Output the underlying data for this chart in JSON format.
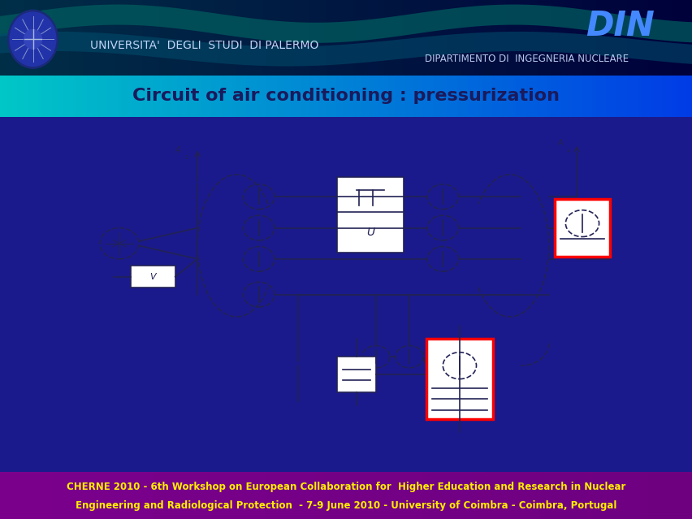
{
  "title_text": "Circuit of air conditioning : pressurization",
  "header_text1": "UNIVERSITA'  DEGLI  STUDI  DI PALERMO",
  "header_text2": "DIPARTIMENTO DI  INGEGNERIA NUCLEARE",
  "header_din": "DIN",
  "footer_line1": "CHERNE 2010 - 6th Workshop on European Collaboration for  Higher Education and Research in Nuclear",
  "footer_line2": "Engineering and Radiological Protection  - 7-9 June 2010 - University of Coimbra - Coimbra, Portugal",
  "bg_color": "#1a1a8c",
  "title_color": "#1a1a5c",
  "din_color": "#4488ff",
  "header_text_color": "#ccddff",
  "footer_text_color": "#ffee00",
  "diagram_bg": "#ffffff",
  "figwidth": 8.53,
  "figheight": 6.39
}
